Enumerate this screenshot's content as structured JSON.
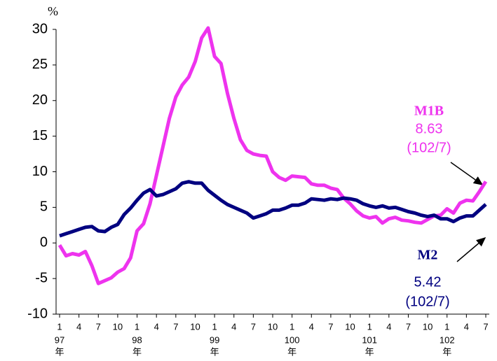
{
  "chart_data": {
    "type": "line",
    "y_label": "%",
    "categories": [
      "1",
      null,
      null,
      "4",
      null,
      null,
      "7",
      null,
      null,
      "10",
      null,
      null,
      "1",
      null,
      null,
      "4",
      null,
      null,
      "7",
      null,
      null,
      "10",
      null,
      null,
      "1",
      null,
      null,
      "4",
      null,
      null,
      "7",
      null,
      null,
      "10",
      null,
      null,
      "1",
      null,
      null,
      "4",
      null,
      null,
      "7",
      null,
      null,
      "10",
      null,
      null,
      "1",
      null,
      null,
      "4",
      null,
      null,
      "7",
      null,
      null,
      "10",
      null,
      null,
      "1",
      null,
      null,
      "4",
      null,
      null,
      "7"
    ],
    "year_groups": [
      {
        "label": "97",
        "suffix": "年",
        "start": 0
      },
      {
        "label": "98",
        "suffix": "年",
        "start": 12
      },
      {
        "label": "99",
        "suffix": "年",
        "start": 24
      },
      {
        "label": "100",
        "suffix": "年",
        "start": 36
      },
      {
        "label": "101",
        "suffix": "年",
        "start": 48
      },
      {
        "label": "102",
        "suffix": "年",
        "start": 60
      }
    ],
    "series": [
      {
        "name": "M1B",
        "color": "#ee33ee",
        "values": [
          -0.3,
          -1.8,
          -1.5,
          -1.7,
          -1.2,
          -3.2,
          -5.7,
          -5.3,
          -4.9,
          -4.1,
          -3.6,
          -2.1,
          1.7,
          2.7,
          5.5,
          9.5,
          13.5,
          17.5,
          20.5,
          22.2,
          23.3,
          25.5,
          28.8,
          30.2,
          26.2,
          25.2,
          21,
          17.5,
          14.5,
          13,
          12.5,
          12.3,
          12.2,
          10,
          9.2,
          8.8,
          9.4,
          9.3,
          9.2,
          8.3,
          8.1,
          8.1,
          7.7,
          7.5,
          6.3,
          5.5,
          4.5,
          3.8,
          3.5,
          3.7,
          2.8,
          3.4,
          3.6,
          3.2,
          3.1,
          2.9,
          2.8,
          3.3,
          3.8,
          3.9,
          4.8,
          4.2,
          5.6,
          6.0,
          5.9,
          7.2,
          8.63
        ]
      },
      {
        "name": "M2",
        "color": "#000080",
        "values": [
          1.0,
          1.3,
          1.6,
          1.9,
          2.2,
          2.3,
          1.7,
          1.6,
          2.2,
          2.6,
          4.0,
          4.9,
          6.0,
          7.0,
          7.5,
          6.6,
          6.8,
          7.2,
          7.6,
          8.4,
          8.6,
          8.4,
          8.4,
          7.4,
          6.7,
          6.0,
          5.4,
          5.0,
          4.6,
          4.2,
          3.5,
          3.8,
          4.1,
          4.6,
          4.6,
          4.9,
          5.3,
          5.3,
          5.6,
          6.2,
          6.1,
          6.0,
          6.2,
          6.1,
          6.3,
          6.2,
          6.0,
          5.5,
          5.2,
          5.0,
          5.2,
          4.9,
          5.0,
          4.7,
          4.4,
          4.2,
          3.9,
          3.7,
          3.9,
          3.4,
          3.4,
          3.0,
          3.5,
          3.8,
          3.8,
          4.6,
          5.42
        ]
      }
    ],
    "annotations": [
      "(102/7)",
      "(102/7)"
    ],
    "ylim": [
      -10,
      30
    ],
    "yticks": [
      -10,
      -5,
      0,
      5,
      10,
      15,
      20,
      25,
      30
    ],
    "grid": false
  }
}
